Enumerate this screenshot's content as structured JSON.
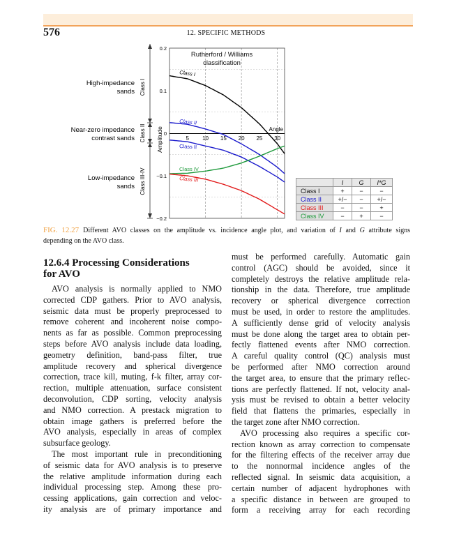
{
  "header": {
    "page_number": "576",
    "running_head": "12. SPECIFIC METHODS"
  },
  "figure": {
    "chart_data": {
      "type": "line",
      "title": "Rutherford / Williams classification",
      "xlabel": "Angle",
      "ylabel": "Amplitude",
      "xlim": [
        0,
        32
      ],
      "ylim": [
        -0.2,
        0.2
      ],
      "x_ticks": [
        5,
        10,
        15,
        20,
        25,
        30
      ],
      "x_tick_labels": [
        "5",
        "10",
        "15",
        "20",
        "25",
        "30"
      ],
      "y_ticks": [
        0.2,
        0.1,
        0,
        -0.1,
        -0.2
      ],
      "y_tick_labels": [
        "0.2",
        "0.1",
        "0",
        "−0.1",
        "−0.2"
      ],
      "grid": true,
      "series": [
        {
          "name": "Class I",
          "color": "#000000",
          "label_italic": true,
          "x": [
            0,
            5,
            10,
            15,
            20,
            25,
            30,
            32
          ],
          "y": [
            0.135,
            0.128,
            0.112,
            0.09,
            0.06,
            0.022,
            -0.025,
            -0.048
          ]
        },
        {
          "name": "Class II",
          "color": "#1a1acc",
          "label_italic": true,
          "x": [
            0,
            5,
            10,
            15,
            20,
            25,
            30,
            32
          ],
          "y": [
            0.025,
            0.021,
            0.01,
            -0.003,
            -0.025,
            -0.05,
            -0.08,
            -0.095
          ]
        },
        {
          "name": "Class II",
          "color": "#1a1acc",
          "label_italic": false,
          "x": [
            0,
            5,
            10,
            15,
            20,
            25,
            30,
            32
          ],
          "y": [
            -0.016,
            -0.02,
            -0.03,
            -0.04,
            -0.056,
            -0.078,
            -0.103,
            -0.115
          ]
        },
        {
          "name": "Class IV",
          "color": "#1f9a3c",
          "label_italic": false,
          "x": [
            0,
            5,
            10,
            15,
            20,
            25,
            30,
            32
          ],
          "y": [
            -0.095,
            -0.094,
            -0.089,
            -0.082,
            -0.07,
            -0.054,
            -0.036,
            -0.03
          ]
        },
        {
          "name": "Class III",
          "color": "#e21a1a",
          "label_italic": true,
          "x": [
            0,
            5,
            10,
            15,
            20,
            25,
            30,
            32
          ],
          "y": [
            -0.096,
            -0.1,
            -0.108,
            -0.12,
            -0.135,
            -0.155,
            -0.18,
            -0.19
          ]
        }
      ]
    },
    "side_labels": {
      "high": [
        "High-impedance",
        "sands"
      ],
      "near": [
        "Near-zero impedance",
        "contrast sands"
      ],
      "low": [
        "Low-impedance",
        "sands"
      ],
      "class_i": "Class I",
      "class_ii": "Class II",
      "class_iii_iv": "Class III-IV"
    },
    "table": {
      "headers": [
        "",
        "I",
        "G",
        "I*G"
      ],
      "rows": [
        {
          "name": "Class I",
          "color": "#111111",
          "values": [
            "+",
            "−",
            "−"
          ]
        },
        {
          "name": "Class II",
          "color": "#1a1acc",
          "values": [
            "+/−",
            "−",
            "+/−"
          ]
        },
        {
          "name": "Class III",
          "color": "#e21a1a",
          "values": [
            "−",
            "−",
            "+"
          ]
        },
        {
          "name": "Class IV",
          "color": "#1f9a3c",
          "values": [
            "−",
            "+",
            "−"
          ]
        }
      ]
    }
  },
  "caption": {
    "label": "FIG. 12.27",
    "t1": "Different AVO classes on the amplitude vs. incidence angle plot, and variation of ",
    "i": "I",
    "t2": " and ",
    "g": "G",
    "t3": " attribute signs",
    "line2": "depending on the AVO class."
  },
  "section": {
    "heading_line1": "12.6.4 Processing Considerations",
    "heading_line2": "for AVO"
  },
  "left_column": [
    {
      "indent": true,
      "ends": true,
      "lines": [
        "AVO analysis is normally applied to NMO",
        "corrected CDP gathers. Prior to AVO analysis,",
        "seismic data must be properly preprocessed to",
        "remove coherent and incoherent noise compo-",
        "nents as far as possible. Common preprocessing",
        "steps before AVO analysis include data loading,",
        "geometry definition, band-pass filter, true",
        "amplitude recovery and spherical divergence",
        "correction, trace kill, muting, f-k filter, array cor-",
        "rection, multiple attenuation, surface consistent",
        "deconvolution, CDP sorting, velocity analysis",
        "and NMO correction. A prestack migration to",
        "obtain image gathers is preferred before the",
        "AVO analysis, especially in areas of complex",
        "subsurface geology."
      ]
    },
    {
      "indent": true,
      "ends": false,
      "lines": [
        "The most important rule in preconditioning",
        "of seismic data for AVO analysis is to preserve",
        "the relative amplitude information during each",
        "individual processing step. Among these pro-",
        "cessing applications, gain correction and veloc-",
        "ity analysis are of primary importance and"
      ]
    }
  ],
  "right_column": [
    {
      "indent": false,
      "ends": true,
      "lines": [
        "must be performed carefully. Automatic gain",
        "control (AGC) should be avoided, since it",
        "completely destroys the relative amplitude rela-",
        "tionship in the data. Therefore, true amplitude",
        "recovery or spherical divergence correction",
        "must be used, in order to restore the amplitudes.",
        "A sufficiently dense grid of velocity analysis",
        "must be done along the target area to obtain per-",
        "fectly flattened events after NMO correction.",
        "A careful quality control (QC) analysis must",
        "be performed after NMO correction around",
        "the target area, to ensure that the primary reflec-",
        "tions are perfectly flattened. If not, velocity anal-",
        "ysis must be revised to obtain a better velocity",
        "field that flattens the primaries, especially in",
        "the target zone after NMO correction."
      ]
    },
    {
      "indent": true,
      "ends": false,
      "lines": [
        "AVO processing also requires a specific cor-",
        "rection known as array correction to compensate",
        "for the filtering effects of the receiver array due",
        "to the nonnormal incidence angles of the",
        "reflected signal. In seismic data acquisition, a",
        "certain number of adjacent hydrophones with",
        "a specific distance in between are grouped to",
        "form a receiving array for each recording"
      ]
    }
  ]
}
